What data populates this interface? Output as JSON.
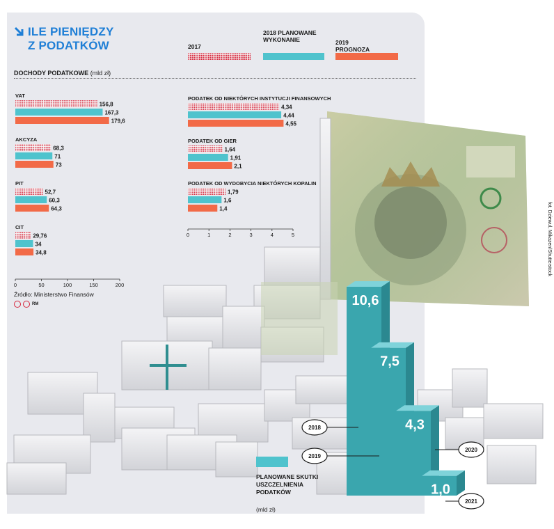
{
  "header": {
    "title_line1": "ILE PIENIĘDZY",
    "title_line2": "Z PODATKÓW",
    "section_label": "DOCHODY PODATKOWE",
    "section_unit": "(mld zł)"
  },
  "legend": {
    "items": [
      {
        "label": "2017",
        "style": "dotted"
      },
      {
        "label": "2018 PLANOWANE WYKONANIE",
        "style": "teal"
      },
      {
        "label": "2019 PROGNOZA",
        "style": "orange"
      }
    ]
  },
  "colors": {
    "title_blue": "#1f7fd6",
    "dotted_red": "#d6243a",
    "teal": "#4fc3cd",
    "orange": "#f26a47",
    "panel_gray": "#e8e9ee",
    "column_teal": "#3aa6ae"
  },
  "source": "Źródło: Ministerstwo Finansów",
  "copyright": "RM",
  "photo_credit": "fot. Dziewul, Mikazen/Shutterstock",
  "chart_data": [
    {
      "type": "bar",
      "orientation": "horizontal",
      "ylabel": "DOCHODY PODATKOWE (mld zł)",
      "categories": [
        "VAT",
        "AKCYZA",
        "PIT",
        "CIT"
      ],
      "series": [
        {
          "name": "2017",
          "values": [
            "156,8",
            "68,3",
            "52,7",
            "29,76"
          ]
        },
        {
          "name": "2018 PLANOWANE WYKONANIE",
          "values": [
            "167,3",
            "71",
            "60,3",
            "34"
          ]
        },
        {
          "name": "2019 PROGNOZA",
          "values": [
            "179,6",
            "73",
            "64,3",
            "34,8"
          ]
        }
      ],
      "xlim": [
        0,
        200
      ],
      "xticks": [
        "0",
        "50",
        "100",
        "150",
        "200"
      ]
    },
    {
      "type": "bar",
      "orientation": "horizontal",
      "categories": [
        "PODATEK OD NIEKTÓRYCH INSTYTUCJI FINANSOWYCH",
        "PODATEK OD GIER",
        "PODATEK OD WYDOBYCIA NIEKTÓRYCH KOPALIN"
      ],
      "series": [
        {
          "name": "2017",
          "values": [
            "4,34",
            "1,64",
            "1,79"
          ]
        },
        {
          "name": "2018 PLANOWANE WYKONANIE",
          "values": [
            "4,44",
            "1,91",
            "1,6"
          ]
        },
        {
          "name": "2019 PROGNOZA",
          "values": [
            "4,55",
            "2,1",
            "1,4"
          ]
        }
      ],
      "xlim": [
        0,
        5
      ],
      "xticks": [
        "0",
        "1",
        "2",
        "3",
        "4",
        "5"
      ]
    },
    {
      "type": "bar",
      "orientation": "vertical",
      "caption": "PLANOWANE SKUTKI USZCZELNIENIA PODATKÓW",
      "unit": "(mld zł)",
      "categories": [
        "2018",
        "2019",
        "2020",
        "2021"
      ],
      "values": [
        "10,6",
        "7,5",
        "4,3",
        "1,0"
      ]
    }
  ]
}
